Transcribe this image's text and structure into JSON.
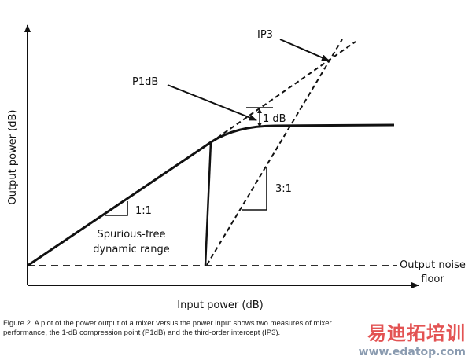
{
  "diagram": {
    "y_axis_label": "Output power (dB)",
    "x_axis_label": "Input power (dB)",
    "labels": {
      "ip3": "IP3",
      "p1db": "P1dB",
      "one_db": "1 dB",
      "slope_1_1": "1:1",
      "slope_3_1": "3:1",
      "sfdr_line1": "Spurious-free",
      "sfdr_line2": "dynamic range",
      "noise_line1": "Output noise",
      "noise_line2": "floor"
    }
  },
  "caption": "Figure 2. A plot of the power output of a mixer versus the power input shows two measures of mixer performance, the 1-dB compression point (P1dB) and the third-order intercept (IP3).",
  "watermark": {
    "cn": "易迪拓培训",
    "url": "www.edatop.com"
  }
}
